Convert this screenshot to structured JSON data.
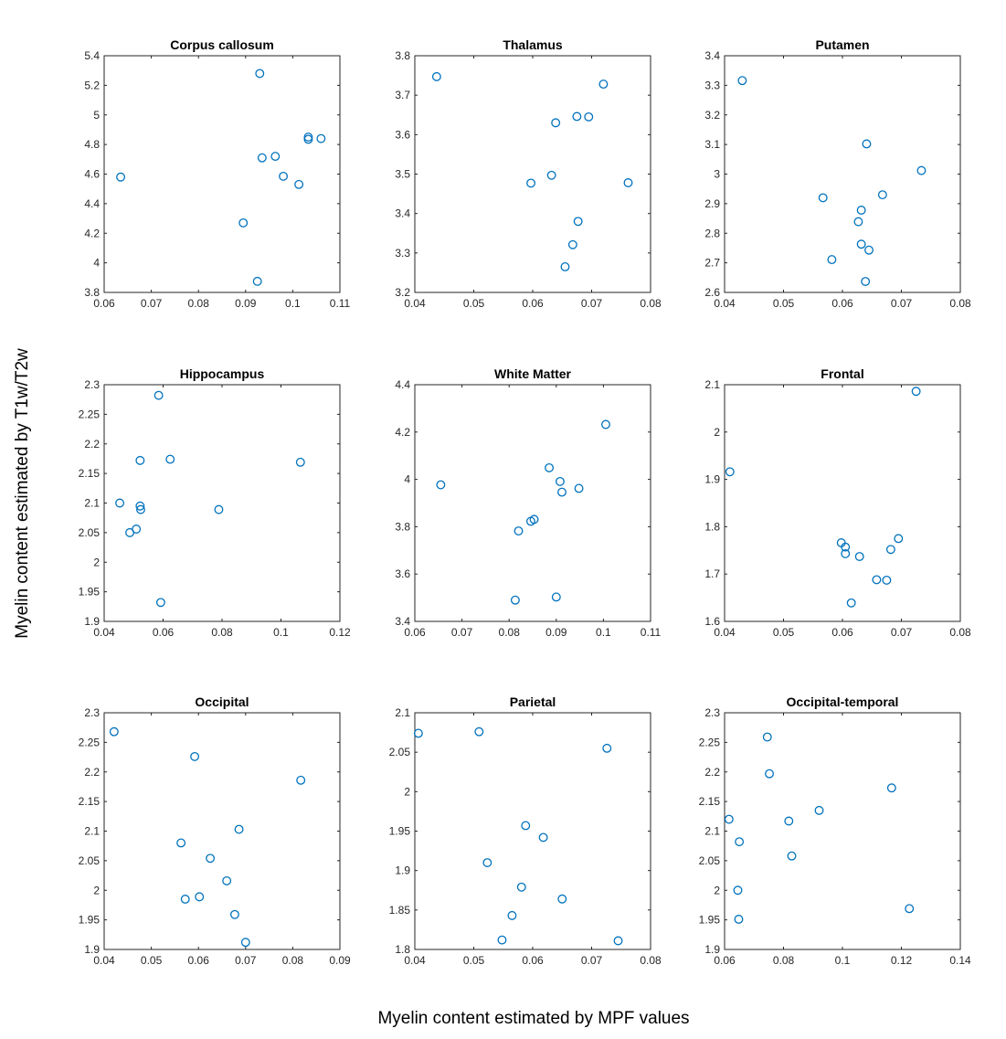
{
  "figure": {
    "xlabel": "Myelin content estimated by MPF values",
    "ylabel": "Myelin content estimated by T1w/T2w",
    "marker_color": "#0072BD"
  },
  "chart_data": [
    {
      "type": "scatter",
      "title": "Corpus callosum",
      "xlim": [
        0.06,
        0.11
      ],
      "ylim": [
        3.8,
        5.4
      ],
      "xticks": [
        "0.06",
        "0.07",
        "0.08",
        "0.09",
        "0.1",
        "0.11"
      ],
      "yticks": [
        "3.8",
        "4",
        "4.2",
        "4.4",
        "4.6",
        "4.8",
        "5",
        "5.2",
        "5.4"
      ],
      "grid": false,
      "points": [
        [
          0.0635,
          4.58
        ],
        [
          0.0895,
          4.27
        ],
        [
          0.0925,
          3.875
        ],
        [
          0.093,
          5.28
        ],
        [
          0.0935,
          4.71
        ],
        [
          0.0963,
          4.72
        ],
        [
          0.098,
          4.585
        ],
        [
          0.1013,
          4.53
        ],
        [
          0.1033,
          4.835
        ],
        [
          0.1033,
          4.85
        ],
        [
          0.106,
          4.84
        ]
      ]
    },
    {
      "type": "scatter",
      "title": "Thalamus",
      "xlim": [
        0.04,
        0.08
      ],
      "ylim": [
        3.2,
        3.8
      ],
      "xticks": [
        "0.04",
        "0.05",
        "0.06",
        "0.07",
        "0.08"
      ],
      "yticks": [
        "3.2",
        "3.3",
        "3.4",
        "3.5",
        "3.6",
        "3.7",
        "3.8"
      ],
      "grid": false,
      "points": [
        [
          0.0437,
          3.747
        ],
        [
          0.0597,
          3.477
        ],
        [
          0.0632,
          3.497
        ],
        [
          0.0639,
          3.63
        ],
        [
          0.0655,
          3.265
        ],
        [
          0.0668,
          3.321
        ],
        [
          0.0675,
          3.646
        ],
        [
          0.0677,
          3.38
        ],
        [
          0.0695,
          3.645
        ],
        [
          0.072,
          3.728
        ],
        [
          0.0762,
          3.478
        ]
      ]
    },
    {
      "type": "scatter",
      "title": "Putamen",
      "xlim": [
        0.04,
        0.08
      ],
      "ylim": [
        2.6,
        3.4
      ],
      "xticks": [
        "0.04",
        "0.05",
        "0.06",
        "0.07",
        "0.08"
      ],
      "yticks": [
        "2.6",
        "2.7",
        "2.8",
        "2.9",
        "3",
        "3.1",
        "3.2",
        "3.3",
        "3.4"
      ],
      "grid": false,
      "points": [
        [
          0.043,
          3.316
        ],
        [
          0.0567,
          2.92
        ],
        [
          0.0582,
          2.711
        ],
        [
          0.0627,
          2.839
        ],
        [
          0.0632,
          2.878
        ],
        [
          0.0632,
          2.763
        ],
        [
          0.0639,
          2.637
        ],
        [
          0.0641,
          3.102
        ],
        [
          0.0645,
          2.743
        ],
        [
          0.0668,
          2.93
        ],
        [
          0.0734,
          3.012
        ]
      ]
    },
    {
      "type": "scatter",
      "title": "Hippocampus",
      "xlim": [
        0.04,
        0.12
      ],
      "ylim": [
        1.9,
        2.3
      ],
      "xticks": [
        "0.04",
        "0.06",
        "0.08",
        "0.1",
        "0.12"
      ],
      "yticks": [
        "1.9",
        "1.95",
        "2",
        "2.05",
        "2.1",
        "2.15",
        "2.2",
        "2.25",
        "2.3"
      ],
      "grid": false,
      "points": [
        [
          0.0453,
          2.1
        ],
        [
          0.0487,
          2.05
        ],
        [
          0.0509,
          2.056
        ],
        [
          0.0522,
          2.172
        ],
        [
          0.0522,
          2.095
        ],
        [
          0.0524,
          2.089
        ],
        [
          0.0585,
          2.282
        ],
        [
          0.0592,
          1.932
        ],
        [
          0.0624,
          2.174
        ],
        [
          0.0789,
          2.089
        ],
        [
          0.1066,
          2.169
        ]
      ]
    },
    {
      "type": "scatter",
      "title": "White Matter",
      "xlim": [
        0.06,
        0.11
      ],
      "ylim": [
        3.4,
        4.4
      ],
      "xticks": [
        "0.06",
        "0.07",
        "0.08",
        "0.09",
        "0.1",
        "0.11"
      ],
      "yticks": [
        "3.4",
        "3.6",
        "3.8",
        "4",
        "4.2",
        "4.4"
      ],
      "grid": false,
      "points": [
        [
          0.0655,
          3.977
        ],
        [
          0.0813,
          3.49
        ],
        [
          0.082,
          3.782
        ],
        [
          0.0846,
          3.823
        ],
        [
          0.0853,
          3.831
        ],
        [
          0.0885,
          4.049
        ],
        [
          0.09,
          3.503
        ],
        [
          0.0908,
          3.991
        ],
        [
          0.0912,
          3.946
        ],
        [
          0.0948,
          3.962
        ],
        [
          0.1005,
          4.232
        ]
      ]
    },
    {
      "type": "scatter",
      "title": "Frontal",
      "xlim": [
        0.04,
        0.08
      ],
      "ylim": [
        1.6,
        2.1
      ],
      "xticks": [
        "0.04",
        "0.05",
        "0.06",
        "0.07",
        "0.08"
      ],
      "yticks": [
        "1.6",
        "1.7",
        "1.8",
        "1.9",
        "2",
        "2.1"
      ],
      "grid": false,
      "points": [
        [
          0.0409,
          1.916
        ],
        [
          0.0598,
          1.766
        ],
        [
          0.0605,
          1.757
        ],
        [
          0.0605,
          1.743
        ],
        [
          0.0615,
          1.639
        ],
        [
          0.0629,
          1.737
        ],
        [
          0.0658,
          1.688
        ],
        [
          0.0675,
          1.687
        ],
        [
          0.0682,
          1.752
        ],
        [
          0.0695,
          1.775
        ],
        [
          0.0725,
          2.086
        ]
      ]
    },
    {
      "type": "scatter",
      "title": "Occipital",
      "xlim": [
        0.04,
        0.09
      ],
      "ylim": [
        1.9,
        2.3
      ],
      "xticks": [
        "0.04",
        "0.05",
        "0.06",
        "0.07",
        "0.08",
        "0.09"
      ],
      "yticks": [
        "1.9",
        "1.95",
        "2",
        "2.05",
        "2.1",
        "2.15",
        "2.2",
        "2.25",
        "2.3"
      ],
      "grid": false,
      "points": [
        [
          0.0421,
          2.268
        ],
        [
          0.0563,
          2.08
        ],
        [
          0.0572,
          1.985
        ],
        [
          0.0592,
          2.226
        ],
        [
          0.0602,
          1.989
        ],
        [
          0.0625,
          2.054
        ],
        [
          0.066,
          2.016
        ],
        [
          0.0677,
          1.959
        ],
        [
          0.0686,
          2.103
        ],
        [
          0.07,
          1.912
        ],
        [
          0.0817,
          2.186
        ]
      ]
    },
    {
      "type": "scatter",
      "title": "Parietal",
      "xlim": [
        0.04,
        0.08
      ],
      "ylim": [
        1.8,
        2.1
      ],
      "xticks": [
        "0.04",
        "0.05",
        "0.06",
        "0.07",
        "0.08"
      ],
      "yticks": [
        "1.8",
        "1.85",
        "1.9",
        "1.95",
        "2",
        "2.05",
        "2.1"
      ],
      "grid": false,
      "points": [
        [
          0.0406,
          2.074
        ],
        [
          0.0509,
          2.076
        ],
        [
          0.0523,
          1.91
        ],
        [
          0.0548,
          1.812
        ],
        [
          0.0565,
          1.843
        ],
        [
          0.0581,
          1.879
        ],
        [
          0.0588,
          1.957
        ],
        [
          0.0618,
          1.942
        ],
        [
          0.065,
          1.864
        ],
        [
          0.0726,
          2.055
        ],
        [
          0.0745,
          1.811
        ]
      ]
    },
    {
      "type": "scatter",
      "title": "Occipital-temporal",
      "xlim": [
        0.06,
        0.14
      ],
      "ylim": [
        1.9,
        2.3
      ],
      "xticks": [
        "0.06",
        "0.08",
        "0.1",
        "0.12",
        "0.14"
      ],
      "yticks": [
        "1.9",
        "1.95",
        "2",
        "2.05",
        "2.1",
        "2.15",
        "2.2",
        "2.25",
        "2.3"
      ],
      "grid": false,
      "points": [
        [
          0.0615,
          2.12
        ],
        [
          0.0645,
          2.0
        ],
        [
          0.0648,
          1.951
        ],
        [
          0.065,
          2.082
        ],
        [
          0.0745,
          2.259
        ],
        [
          0.0752,
          2.197
        ],
        [
          0.0818,
          2.117
        ],
        [
          0.0828,
          2.058
        ],
        [
          0.0921,
          2.135
        ],
        [
          0.1167,
          2.173
        ],
        [
          0.1227,
          1.969
        ]
      ]
    }
  ]
}
